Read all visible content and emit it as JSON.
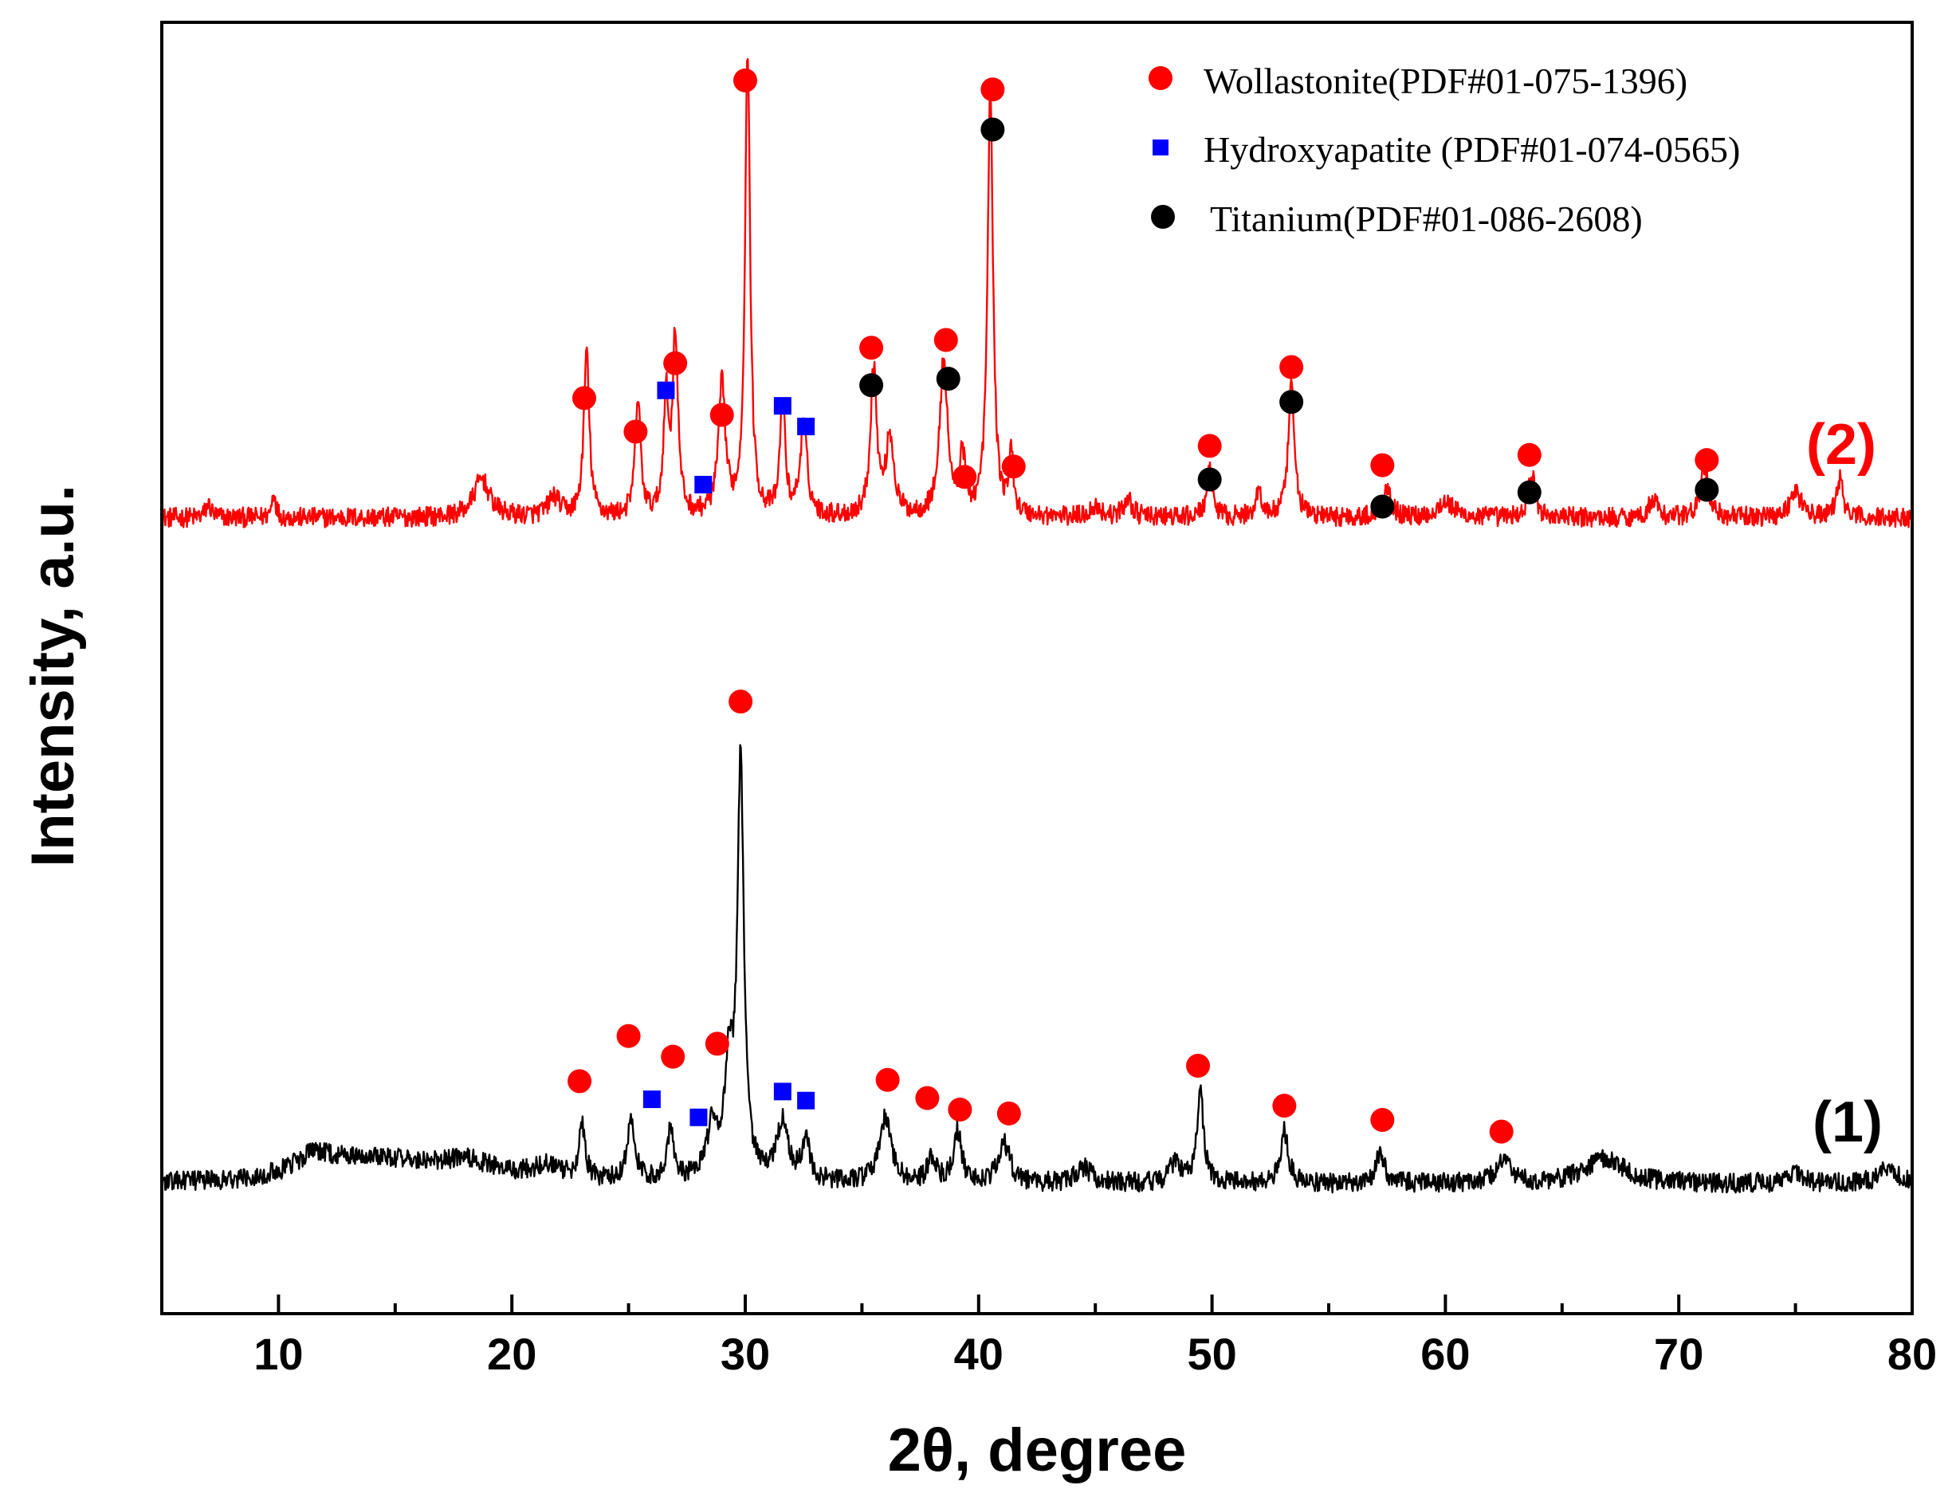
{
  "chart_data": {
    "type": "line",
    "title": "",
    "xlabel": "2θ, degree",
    "ylabel": "Intensity, a.u.",
    "xlim": [
      5,
      80
    ],
    "ylim": [
      0,
      1
    ],
    "x_ticks": [
      10,
      20,
      30,
      40,
      50,
      60,
      70,
      80
    ],
    "x_tick_labels": [
      "10",
      "20",
      "30",
      "40",
      "50",
      "60",
      "70",
      "80"
    ],
    "grid": false,
    "legend_position": "top-right",
    "legend": [
      {
        "name": "Wollastonite(PDF#01-075-1396)",
        "marker": "circle",
        "color": "#ff0000"
      },
      {
        "name": "Hydroxyapatite (PDF#01-074-0565)",
        "marker": "square",
        "color": "#0000ff"
      },
      {
        "name": "Titanium(PDF#01-086-2608)",
        "marker": "circle",
        "color": "#000000"
      }
    ],
    "series": [
      {
        "name": "(2)",
        "color": "#ff0000",
        "baseline": 0.614,
        "noise": 0.007,
        "peaks": [
          {
            "x": 7.0,
            "h": 0.01,
            "w": 0.15
          },
          {
            "x": 9.8,
            "h": 0.02,
            "w": 0.1
          },
          {
            "x": 18.7,
            "h": 0.03,
            "w": 0.4
          },
          {
            "x": 21.8,
            "h": 0.015,
            "w": 0.3
          },
          {
            "x": 23.2,
            "h": 0.128,
            "w": 0.14
          },
          {
            "x": 25.4,
            "h": 0.09,
            "w": 0.14
          },
          {
            "x": 26.6,
            "h": 0.09,
            "w": 0.12
          },
          {
            "x": 27.0,
            "h": 0.14,
            "w": 0.14
          },
          {
            "x": 29.0,
            "h": 0.1,
            "w": 0.18
          },
          {
            "x": 30.1,
            "h": 0.36,
            "w": 0.13
          },
          {
            "x": 31.6,
            "h": 0.09,
            "w": 0.13
          },
          {
            "x": 32.5,
            "h": 0.07,
            "w": 0.18
          },
          {
            "x": 35.5,
            "h": 0.115,
            "w": 0.16
          },
          {
            "x": 36.2,
            "h": 0.06,
            "w": 0.2
          },
          {
            "x": 38.5,
            "h": 0.12,
            "w": 0.2
          },
          {
            "x": 39.3,
            "h": 0.045,
            "w": 0.15
          },
          {
            "x": 40.5,
            "h": 0.33,
            "w": 0.14
          },
          {
            "x": 41.4,
            "h": 0.045,
            "w": 0.12
          },
          {
            "x": 45.0,
            "h": 0.008,
            "w": 0.3
          },
          {
            "x": 46.4,
            "h": 0.015,
            "w": 0.2
          },
          {
            "x": 49.9,
            "h": 0.035,
            "w": 0.16
          },
          {
            "x": 52.0,
            "h": 0.02,
            "w": 0.16
          },
          {
            "x": 53.4,
            "h": 0.1,
            "w": 0.16
          },
          {
            "x": 57.5,
            "h": 0.025,
            "w": 0.2
          },
          {
            "x": 60.0,
            "h": 0.012,
            "w": 0.4
          },
          {
            "x": 63.7,
            "h": 0.033,
            "w": 0.18
          },
          {
            "x": 68.9,
            "h": 0.015,
            "w": 0.2
          },
          {
            "x": 71.1,
            "h": 0.04,
            "w": 0.2
          },
          {
            "x": 75.0,
            "h": 0.02,
            "w": 0.3
          },
          {
            "x": 76.9,
            "h": 0.03,
            "w": 0.16
          }
        ],
        "markers": [
          {
            "x": 23.1,
            "y": 0.709,
            "phase": "Wollastonite"
          },
          {
            "x": 25.3,
            "y": 0.683,
            "phase": "Wollastonite"
          },
          {
            "x": 27.0,
            "y": 0.736,
            "phase": "Wollastonite"
          },
          {
            "x": 26.6,
            "y": 0.715,
            "phase": "Hydroxyapatite"
          },
          {
            "x": 28.2,
            "y": 0.642,
            "phase": "Hydroxyapatite"
          },
          {
            "x": 29.0,
            "y": 0.696,
            "phase": "Wollastonite"
          },
          {
            "x": 30.0,
            "y": 0.955,
            "phase": "Wollastonite"
          },
          {
            "x": 31.6,
            "y": 0.703,
            "phase": "Hydroxyapatite"
          },
          {
            "x": 32.6,
            "y": 0.687,
            "phase": "Hydroxyapatite"
          },
          {
            "x": 35.4,
            "y": 0.748,
            "phase": "Wollastonite"
          },
          {
            "x": 35.4,
            "y": 0.719,
            "phase": "Titanium"
          },
          {
            "x": 38.6,
            "y": 0.754,
            "phase": "Wollastonite"
          },
          {
            "x": 38.7,
            "y": 0.724,
            "phase": "Titanium"
          },
          {
            "x": 39.4,
            "y": 0.648,
            "phase": "Wollastonite"
          },
          {
            "x": 40.6,
            "y": 0.948,
            "phase": "Wollastonite"
          },
          {
            "x": 40.6,
            "y": 0.917,
            "phase": "Titanium"
          },
          {
            "x": 41.5,
            "y": 0.656,
            "phase": "Wollastonite"
          },
          {
            "x": 49.9,
            "y": 0.672,
            "phase": "Wollastonite"
          },
          {
            "x": 49.9,
            "y": 0.646,
            "phase": "Titanium"
          },
          {
            "x": 53.4,
            "y": 0.733,
            "phase": "Wollastonite"
          },
          {
            "x": 53.4,
            "y": 0.706,
            "phase": "Titanium"
          },
          {
            "x": 57.3,
            "y": 0.657,
            "phase": "Wollastonite"
          },
          {
            "x": 57.3,
            "y": 0.625,
            "phase": "Titanium"
          },
          {
            "x": 63.6,
            "y": 0.665,
            "phase": "Wollastonite"
          },
          {
            "x": 63.6,
            "y": 0.636,
            "phase": "Titanium"
          },
          {
            "x": 71.2,
            "y": 0.661,
            "phase": "Wollastonite"
          },
          {
            "x": 71.2,
            "y": 0.638,
            "phase": "Titanium"
          }
        ]
      },
      {
        "name": "(1)",
        "color": "#000000",
        "baseline": 0.098,
        "noise": 0.007,
        "peaks": [
          {
            "x": 11.5,
            "h": 0.015,
            "w": 1.0
          },
          {
            "x": 14.0,
            "h": 0.018,
            "w": 2.5
          },
          {
            "x": 18.0,
            "h": 0.014,
            "w": 1.8
          },
          {
            "x": 21.5,
            "h": 0.01,
            "w": 0.8
          },
          {
            "x": 23.0,
            "h": 0.04,
            "w": 0.16
          },
          {
            "x": 25.1,
            "h": 0.045,
            "w": 0.2
          },
          {
            "x": 26.8,
            "h": 0.04,
            "w": 0.18
          },
          {
            "x": 28.6,
            "h": 0.04,
            "w": 0.3
          },
          {
            "x": 29.3,
            "h": 0.08,
            "w": 0.2
          },
          {
            "x": 29.8,
            "h": 0.32,
            "w": 0.17
          },
          {
            "x": 31.6,
            "h": 0.045,
            "w": 0.3
          },
          {
            "x": 32.6,
            "h": 0.035,
            "w": 0.18
          },
          {
            "x": 36.0,
            "h": 0.05,
            "w": 0.3
          },
          {
            "x": 38.0,
            "h": 0.02,
            "w": 0.2
          },
          {
            "x": 39.1,
            "h": 0.04,
            "w": 0.2
          },
          {
            "x": 41.1,
            "h": 0.03,
            "w": 0.3
          },
          {
            "x": 44.5,
            "h": 0.012,
            "w": 0.4
          },
          {
            "x": 48.4,
            "h": 0.015,
            "w": 0.3
          },
          {
            "x": 49.5,
            "h": 0.07,
            "w": 0.17
          },
          {
            "x": 53.1,
            "h": 0.04,
            "w": 0.2
          },
          {
            "x": 57.2,
            "h": 0.025,
            "w": 0.2
          },
          {
            "x": 62.5,
            "h": 0.018,
            "w": 0.4
          },
          {
            "x": 66.8,
            "h": 0.02,
            "w": 1.0
          },
          {
            "x": 75.0,
            "h": 0.008,
            "w": 0.4
          },
          {
            "x": 79.0,
            "h": 0.012,
            "w": 0.5
          }
        ],
        "markers": [
          {
            "x": 22.9,
            "y": 0.18,
            "phase": "Wollastonite"
          },
          {
            "x": 25.0,
            "y": 0.215,
            "phase": "Wollastonite"
          },
          {
            "x": 26.9,
            "y": 0.199,
            "phase": "Wollastonite"
          },
          {
            "x": 26.0,
            "y": 0.166,
            "phase": "Hydroxyapatite"
          },
          {
            "x": 28.0,
            "y": 0.152,
            "phase": "Hydroxyapatite"
          },
          {
            "x": 28.8,
            "y": 0.209,
            "phase": "Wollastonite"
          },
          {
            "x": 29.8,
            "y": 0.474,
            "phase": "Wollastonite"
          },
          {
            "x": 31.6,
            "y": 0.172,
            "phase": "Hydroxyapatite"
          },
          {
            "x": 32.6,
            "y": 0.165,
            "phase": "Hydroxyapatite"
          },
          {
            "x": 36.1,
            "y": 0.181,
            "phase": "Wollastonite"
          },
          {
            "x": 37.8,
            "y": 0.167,
            "phase": "Wollastonite"
          },
          {
            "x": 39.2,
            "y": 0.158,
            "phase": "Wollastonite"
          },
          {
            "x": 41.3,
            "y": 0.155,
            "phase": "Wollastonite"
          },
          {
            "x": 49.4,
            "y": 0.192,
            "phase": "Wollastonite"
          },
          {
            "x": 53.1,
            "y": 0.161,
            "phase": "Wollastonite"
          },
          {
            "x": 57.3,
            "y": 0.15,
            "phase": "Wollastonite"
          },
          {
            "x": 62.4,
            "y": 0.141,
            "phase": "Wollastonite"
          }
        ]
      }
    ]
  }
}
